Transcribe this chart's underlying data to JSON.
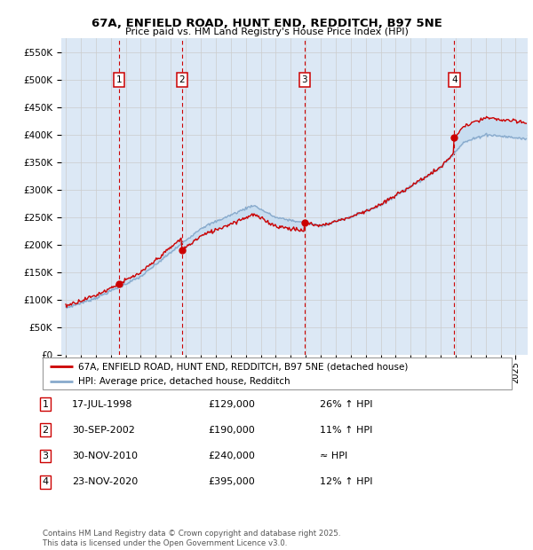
{
  "title": "67A, ENFIELD ROAD, HUNT END, REDDITCH, B97 5NE",
  "subtitle": "Price paid vs. HM Land Registry's House Price Index (HPI)",
  "ylim": [
    0,
    575000
  ],
  "yticks": [
    0,
    50000,
    100000,
    150000,
    200000,
    250000,
    300000,
    350000,
    400000,
    450000,
    500000,
    550000
  ],
  "ytick_labels": [
    "£0",
    "£50K",
    "£100K",
    "£150K",
    "£200K",
    "£250K",
    "£300K",
    "£350K",
    "£400K",
    "£450K",
    "£500K",
    "£550K"
  ],
  "xlim_start": 1994.7,
  "xlim_end": 2025.8,
  "sale_dates": [
    1998.54,
    2002.75,
    2010.92,
    2020.9
  ],
  "sale_prices": [
    129000,
    190000,
    240000,
    395000
  ],
  "sale_labels": [
    "1",
    "2",
    "3",
    "4"
  ],
  "legend_line1": "67A, ENFIELD ROAD, HUNT END, REDDITCH, B97 5NE (detached house)",
  "legend_line2": "HPI: Average price, detached house, Redditch",
  "transactions": [
    {
      "num": "1",
      "date": "17-JUL-1998",
      "price": "£129,000",
      "change": "26% ↑ HPI"
    },
    {
      "num": "2",
      "date": "30-SEP-2002",
      "price": "£190,000",
      "change": "11% ↑ HPI"
    },
    {
      "num": "3",
      "date": "30-NOV-2010",
      "price": "£240,000",
      "change": "≈ HPI"
    },
    {
      "num": "4",
      "date": "23-NOV-2020",
      "price": "£395,000",
      "change": "12% ↑ HPI"
    }
  ],
  "footer": "Contains HM Land Registry data © Crown copyright and database right 2025.\nThis data is licensed under the Open Government Licence v3.0.",
  "red_color": "#cc0000",
  "blue_color": "#88aacc",
  "fill_color": "#c8ddf0",
  "grid_color": "#cccccc",
  "bg_color": "#dce8f5"
}
